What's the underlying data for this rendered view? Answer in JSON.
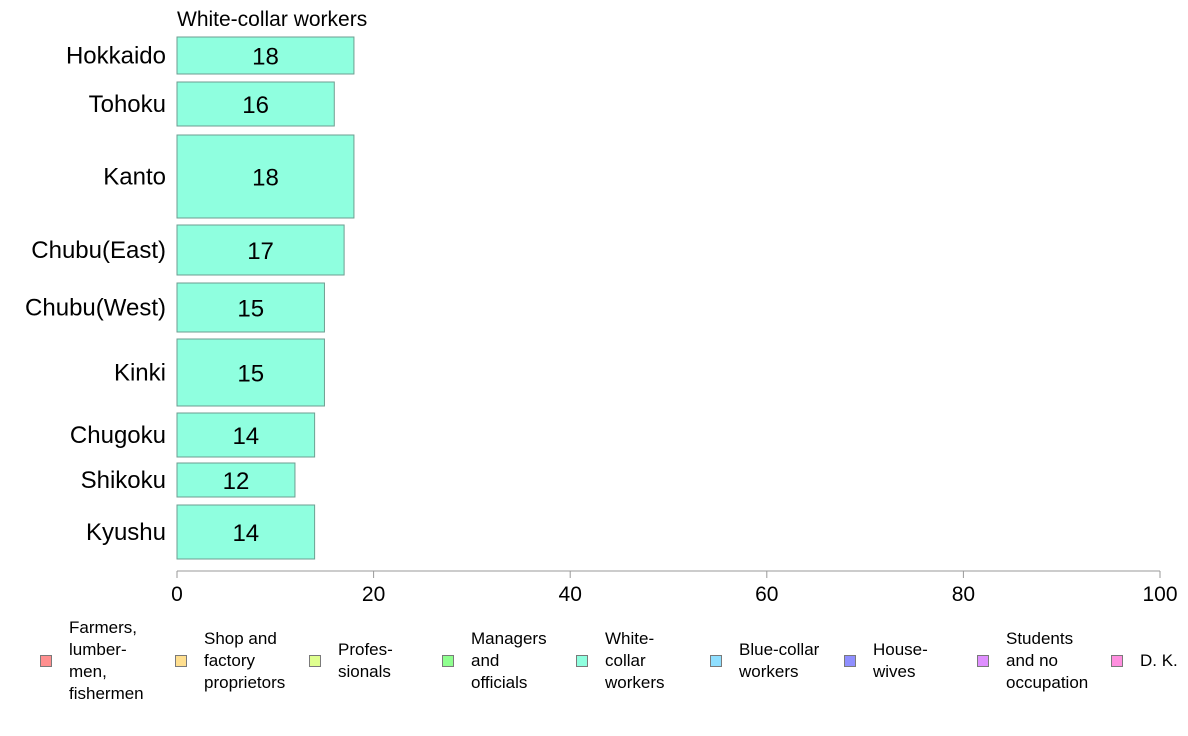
{
  "chart_data": {
    "type": "bar",
    "orientation": "horizontal",
    "title": "White-collar workers",
    "categories": [
      "Hokkaido",
      "Tohoku",
      "Kanto",
      "Chubu(East)",
      "Chubu(West)",
      "Kinki",
      "Chugoku",
      "Shikoku",
      "Kyushu"
    ],
    "series": [
      {
        "name": "White-collar workers",
        "values": [
          18,
          16,
          18,
          17,
          15,
          15,
          14,
          12,
          14
        ],
        "color": "#8fffdf"
      }
    ],
    "data_labels": [
      "18",
      "16",
      "18",
      "17",
      "15",
      "15",
      "14",
      "12",
      "14"
    ],
    "xlim": [
      0,
      100
    ],
    "xticks": [
      0,
      20,
      40,
      60,
      80,
      100
    ],
    "grid": false,
    "legend_position": "bottom",
    "legend": [
      {
        "label": "Farmers,\nlumber-\nmen,\nfishermen",
        "color": "#ff8f8f"
      },
      {
        "label": "Shop and\nfactory\nproprietors",
        "color": "#ffdf8f"
      },
      {
        "label": "Profes-\nsionals",
        "color": "#dfff8f"
      },
      {
        "label": "Managers\nand\nofficials",
        "color": "#8fff8f"
      },
      {
        "label": "White-\ncollar\nworkers",
        "color": "#8fffdf"
      },
      {
        "label": "Blue-collar\nworkers",
        "color": "#8fdfff"
      },
      {
        "label": "House-\nwives",
        "color": "#8f8fff"
      },
      {
        "label": "Students\nand no\noccupation",
        "color": "#df8fff"
      },
      {
        "label": "D. K.",
        "color": "#ff8fdf"
      }
    ]
  }
}
